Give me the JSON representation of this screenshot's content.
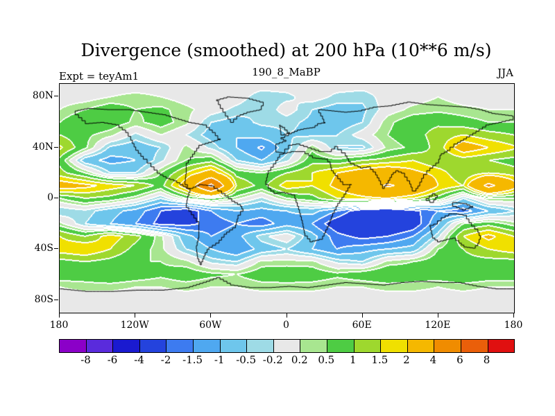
{
  "figure": {
    "title": "Divergence (smoothed) at 200 hPa (10**6 m/s)",
    "expt_label": "Expt = teyAm1",
    "run_label": "190_8_MaBP",
    "season_label": "JJA"
  },
  "chart_data": {
    "type": "heatmap",
    "subtype": "filled-contour-world-map",
    "title": "Divergence (smoothed) at 200 hPa (10**6 m/s)",
    "experiment": "teyAm1",
    "run": "190_8_MaBP",
    "season": "JJA",
    "units": "10**6 m/s",
    "lat_ticks": [
      {
        "label": "80N",
        "lat": 80
      },
      {
        "label": "40N",
        "lat": 40
      },
      {
        "label": "0",
        "lat": 0
      },
      {
        "label": "40S",
        "lat": -40
      },
      {
        "label": "80S",
        "lat": -80
      }
    ],
    "lon_ticks": [
      {
        "label": "180",
        "lon": -180
      },
      {
        "label": "120W",
        "lon": -120
      },
      {
        "label": "60W",
        "lon": -60
      },
      {
        "label": "0",
        "lon": 0
      },
      {
        "label": "60E",
        "lon": 60
      },
      {
        "label": "120E",
        "lon": 120
      },
      {
        "label": "180",
        "lon": 180
      }
    ],
    "levels": [
      -8,
      -6,
      -4,
      -2,
      -1.5,
      -1,
      -0.5,
      -0.2,
      0.2,
      0.5,
      1,
      1.5,
      2,
      4,
      6,
      8
    ],
    "colorbar_labels": [
      "-8",
      "-6",
      "-4",
      "-2",
      "-1.5",
      "-1",
      "-0.5",
      "-0.2",
      "0.2",
      "0.5",
      "1",
      "1.5",
      "2",
      "4",
      "6",
      "8"
    ],
    "colors": [
      "#8b00c8",
      "#5a2bdc",
      "#1a1ad0",
      "#2443dd",
      "#3d7bf0",
      "#4fa8f0",
      "#6ec6ec",
      "#9edbe6",
      "#e8e8e8",
      "#a8e690",
      "#4ecc44",
      "#9ed82e",
      "#f0e000",
      "#f5b800",
      "#f08c00",
      "#ea5f0a",
      "#e01010"
    ],
    "grid": {
      "lon_min": -180,
      "lon_step": 20,
      "lat_max": 90,
      "lat_step": -10,
      "values": [
        [
          0,
          0,
          0,
          0,
          0,
          0,
          0,
          0,
          0,
          0,
          0,
          0,
          0,
          0,
          0,
          0,
          0,
          0,
          0
        ],
        [
          0,
          0,
          0.2,
          0.3,
          0.2,
          0,
          0,
          0,
          -0.4,
          -0.3,
          0,
          -0.3,
          -0.4,
          0,
          0,
          0.2,
          0,
          0,
          0
        ],
        [
          0.2,
          0.5,
          0.8,
          0.5,
          0.6,
          0.3,
          0,
          -0.3,
          -0.5,
          0,
          -0.5,
          -0.7,
          -0.6,
          0,
          0.3,
          0.4,
          0.3,
          0.2,
          0.2
        ],
        [
          0.5,
          1,
          0.8,
          0.4,
          0.7,
          0.3,
          -0.5,
          -0.7,
          -0.4,
          -0.4,
          -0.6,
          -0.8,
          -0.5,
          0.4,
          0.8,
          0.9,
          0.7,
          0.5,
          0.5
        ],
        [
          1,
          0.6,
          0.3,
          -0.3,
          0.2,
          -0.2,
          -0.7,
          -1,
          -0.8,
          -0.5,
          -0.6,
          -0.5,
          0,
          0.5,
          0.8,
          1.2,
          1.5,
          1.2,
          1
        ],
        [
          1.6,
          0.6,
          -0.6,
          -0.8,
          -0.5,
          0.3,
          -0.3,
          -1,
          -1.6,
          -0.7,
          0.4,
          -0.5,
          -0.6,
          0.3,
          0.6,
          1.2,
          2.5,
          2,
          1.6
        ],
        [
          0.8,
          -0.8,
          -1.2,
          -1,
          -0.3,
          0.5,
          0.8,
          -0.5,
          -1,
          -0.3,
          0.8,
          0.6,
          1,
          1.2,
          1.5,
          1,
          1.2,
          1,
          0.8
        ],
        [
          1.2,
          0.5,
          -0.5,
          -0.5,
          0.5,
          1.5,
          2.5,
          0.8,
          0.5,
          1,
          1.5,
          2,
          2.5,
          2.8,
          2.2,
          1.8,
          1,
          1.5,
          1.2
        ],
        [
          2.5,
          2.2,
          1.8,
          1.5,
          0.8,
          2.5,
          6.5,
          1.5,
          0.8,
          1.8,
          1.5,
          2.2,
          3,
          4.2,
          3.5,
          2,
          1.5,
          4.5,
          2.5
        ],
        [
          0.5,
          1,
          0.8,
          0.3,
          -0.5,
          0.5,
          1,
          0.3,
          -0.3,
          0.5,
          0.8,
          1.5,
          1.8,
          2,
          1.5,
          0.8,
          -0.5,
          0.5,
          0.5
        ],
        [
          -0.5,
          -0.3,
          -0.8,
          -1.2,
          -2,
          -2.5,
          -1.5,
          -1,
          -1.2,
          -1,
          -0.8,
          -1.5,
          -2.5,
          -2.8,
          -2.2,
          -1.5,
          -1.8,
          -1,
          -0.5
        ],
        [
          0.3,
          -0.5,
          -1,
          -1.5,
          -2.2,
          -2.2,
          -1.8,
          -1.5,
          -1.8,
          -1.2,
          -1.5,
          -2.5,
          -3,
          -3,
          -2.5,
          -1,
          0.5,
          0.8,
          0.3
        ],
        [
          1.5,
          1,
          1.8,
          1.2,
          0.3,
          -0.8,
          -1.5,
          -1.2,
          -0.3,
          0.1,
          -0.8,
          -1.8,
          -2.2,
          -2,
          -1.5,
          -0.3,
          1.5,
          2.2,
          1.5
        ],
        [
          1.8,
          2,
          1.5,
          0.8,
          0.3,
          -0.5,
          -1,
          -1.5,
          -0.8,
          -0.5,
          -1,
          -1.5,
          -1.2,
          -1,
          -0.8,
          0.5,
          1,
          1.5,
          1.8
        ],
        [
          0.8,
          1,
          0.8,
          0.5,
          0.5,
          0.3,
          -0.3,
          -0.5,
          0.3,
          0.3,
          0.3,
          -0.3,
          -0.5,
          0.3,
          0.5,
          0.8,
          0.8,
          0.8,
          0.8
        ],
        [
          0.8,
          0.8,
          1,
          0.8,
          0.6,
          0.8,
          0.6,
          0.5,
          0.8,
          0.9,
          0.8,
          0.6,
          0.8,
          1,
          0.8,
          0.8,
          1,
          0.8,
          0.8
        ],
        [
          0.2,
          0.3,
          0.3,
          0.2,
          0.2,
          0.3,
          0.2,
          0.2,
          0.3,
          0.3,
          0.3,
          0.2,
          0.2,
          0.3,
          0.3,
          0.2,
          0.3,
          0.2,
          0.2
        ],
        [
          0,
          0,
          0,
          0,
          0,
          0,
          0,
          0,
          0,
          0,
          0,
          0,
          0,
          0,
          0,
          0,
          0,
          0,
          0
        ],
        [
          0,
          0,
          0,
          0,
          0,
          0,
          0,
          0,
          0,
          0,
          0,
          0,
          0,
          0,
          0,
          0,
          0,
          0,
          0
        ]
      ]
    },
    "coastlines": [
      [
        [
          -168,
          66
        ],
        [
          -160,
          59
        ],
        [
          -148,
          60
        ],
        [
          -136,
          58
        ],
        [
          -128,
          52
        ],
        [
          -124,
          46
        ],
        [
          -120,
          38
        ],
        [
          -114,
          31
        ],
        [
          -108,
          25
        ],
        [
          -103,
          20
        ],
        [
          -96,
          16
        ],
        [
          -90,
          14
        ],
        [
          -85,
          11
        ],
        [
          -80,
          8
        ],
        [
          -77,
          8
        ],
        [
          -81,
          14
        ],
        [
          -80,
          22
        ],
        [
          -80,
          28
        ],
        [
          -75,
          35
        ],
        [
          -70,
          42
        ],
        [
          -60,
          45
        ],
        [
          -53,
          47
        ],
        [
          -57,
          52
        ],
        [
          -64,
          58
        ],
        [
          -76,
          60
        ],
        [
          -86,
          63
        ],
        [
          -96,
          66
        ],
        [
          -110,
          68
        ],
        [
          -124,
          70
        ],
        [
          -140,
          70
        ],
        [
          -156,
          71
        ],
        [
          -166,
          69
        ],
        [
          -168,
          66
        ]
      ],
      [
        [
          -77,
          8
        ],
        [
          -70,
          11
        ],
        [
          -61,
          10
        ],
        [
          -52,
          4
        ],
        [
          -44,
          -2
        ],
        [
          -37,
          -6
        ],
        [
          -35,
          -10
        ],
        [
          -39,
          -16
        ],
        [
          -41,
          -23
        ],
        [
          -48,
          -28
        ],
        [
          -54,
          -35
        ],
        [
          -62,
          -40
        ],
        [
          -65,
          -45
        ],
        [
          -68,
          -52
        ],
        [
          -71,
          -45
        ],
        [
          -72,
          -37
        ],
        [
          -70,
          -28
        ],
        [
          -70,
          -18
        ],
        [
          -76,
          -10
        ],
        [
          -80,
          -4
        ],
        [
          -79,
          2
        ],
        [
          -77,
          8
        ]
      ],
      [
        [
          -6,
          35
        ],
        [
          3,
          37
        ],
        [
          11,
          37
        ],
        [
          20,
          32
        ],
        [
          30,
          31
        ],
        [
          34,
          27
        ],
        [
          35,
          22
        ],
        [
          38,
          18
        ],
        [
          44,
          11
        ],
        [
          51,
          11
        ],
        [
          45,
          1
        ],
        [
          40,
          -6
        ],
        [
          36,
          -14
        ],
        [
          33,
          -22
        ],
        [
          28,
          -32
        ],
        [
          20,
          -34
        ],
        [
          14,
          -27
        ],
        [
          12,
          -17
        ],
        [
          9,
          -6
        ],
        [
          6,
          3
        ],
        [
          -2,
          5
        ],
        [
          -8,
          4
        ],
        [
          -13,
          8
        ],
        [
          -17,
          14
        ],
        [
          -15,
          22
        ],
        [
          -9,
          30
        ],
        [
          -6,
          35
        ]
      ],
      [
        [
          -9,
          37
        ],
        [
          -9,
          43
        ],
        [
          -1,
          46
        ],
        [
          -5,
          48
        ],
        [
          1,
          51
        ],
        [
          8,
          54
        ],
        [
          13,
          55
        ],
        [
          20,
          56
        ],
        [
          24,
          59
        ],
        [
          30,
          60
        ],
        [
          28,
          65
        ],
        [
          25,
          70
        ],
        [
          35,
          69
        ],
        [
          45,
          68
        ],
        [
          56,
          69
        ],
        [
          68,
          72
        ],
        [
          80,
          73
        ],
        [
          95,
          76
        ],
        [
          110,
          74
        ],
        [
          125,
          73
        ],
        [
          140,
          72
        ],
        [
          152,
          70
        ],
        [
          162,
          67
        ],
        [
          178,
          65
        ],
        [
          179,
          62
        ],
        [
          170,
          60
        ],
        [
          160,
          58
        ],
        [
          152,
          53
        ],
        [
          142,
          47
        ],
        [
          135,
          43
        ],
        [
          129,
          38
        ],
        [
          122,
          34
        ],
        [
          120,
          28
        ],
        [
          113,
          22
        ],
        [
          108,
          16
        ],
        [
          105,
          10
        ],
        [
          102,
          6
        ],
        [
          99,
          9
        ],
        [
          97,
          14
        ],
        [
          93,
          20
        ],
        [
          88,
          22
        ],
        [
          84,
          19
        ],
        [
          80,
          12
        ],
        [
          77,
          8
        ],
        [
          74,
          14
        ],
        [
          70,
          21
        ],
        [
          66,
          25
        ],
        [
          60,
          24
        ],
        [
          56,
          26
        ],
        [
          50,
          29
        ],
        [
          46,
          36
        ],
        [
          40,
          41
        ],
        [
          35,
          37
        ],
        [
          28,
          37
        ],
        [
          22,
          39
        ],
        [
          16,
          41
        ],
        [
          10,
          43
        ],
        [
          4,
          42
        ],
        [
          -2,
          36
        ],
        [
          -9,
          37
        ]
      ],
      [
        [
          113,
          -22
        ],
        [
          115,
          -31
        ],
        [
          119,
          -34
        ],
        [
          126,
          -32
        ],
        [
          131,
          -31
        ],
        [
          136,
          -35
        ],
        [
          140,
          -38
        ],
        [
          147,
          -39
        ],
        [
          151,
          -35
        ],
        [
          153,
          -29
        ],
        [
          151,
          -24
        ],
        [
          146,
          -19
        ],
        [
          142,
          -13
        ],
        [
          136,
          -12
        ],
        [
          131,
          -12
        ],
        [
          125,
          -15
        ],
        [
          119,
          -20
        ],
        [
          113,
          -22
        ]
      ],
      [
        [
          -45,
          60
        ],
        [
          -40,
          65
        ],
        [
          -32,
          68
        ],
        [
          -22,
          70
        ],
        [
          -19,
          76
        ],
        [
          -30,
          79
        ],
        [
          -45,
          80
        ],
        [
          -56,
          77
        ],
        [
          -53,
          71
        ],
        [
          -49,
          65
        ],
        [
          -45,
          60
        ]
      ],
      [
        [
          -5,
          50
        ],
        [
          2,
          52
        ],
        [
          -2,
          56
        ],
        [
          -6,
          58
        ],
        [
          -5,
          50
        ]
      ],
      [
        [
          110,
          0
        ],
        [
          115,
          4
        ],
        [
          119,
          1
        ],
        [
          116,
          -3
        ],
        [
          110,
          0
        ]
      ],
      [
        [
          131,
          -3
        ],
        [
          140,
          -4
        ],
        [
          147,
          -7
        ],
        [
          141,
          -9
        ],
        [
          134,
          -6
        ],
        [
          131,
          -3
        ]
      ],
      [
        [
          -180,
          -71
        ],
        [
          -160,
          -73
        ],
        [
          -140,
          -73
        ],
        [
          -120,
          -72
        ],
        [
          -100,
          -72
        ],
        [
          -80,
          -70
        ],
        [
          -64,
          -65
        ],
        [
          -56,
          -62
        ],
        [
          -45,
          -68
        ],
        [
          -30,
          -70
        ],
        [
          -15,
          -70
        ],
        [
          0,
          -69
        ],
        [
          15,
          -70
        ],
        [
          30,
          -68
        ],
        [
          45,
          -66
        ],
        [
          60,
          -67
        ],
        [
          75,
          -68
        ],
        [
          90,
          -66
        ],
        [
          105,
          -65
        ],
        [
          120,
          -66
        ],
        [
          135,
          -66
        ],
        [
          150,
          -69
        ],
        [
          165,
          -71
        ],
        [
          180,
          -71
        ]
      ]
    ]
  }
}
